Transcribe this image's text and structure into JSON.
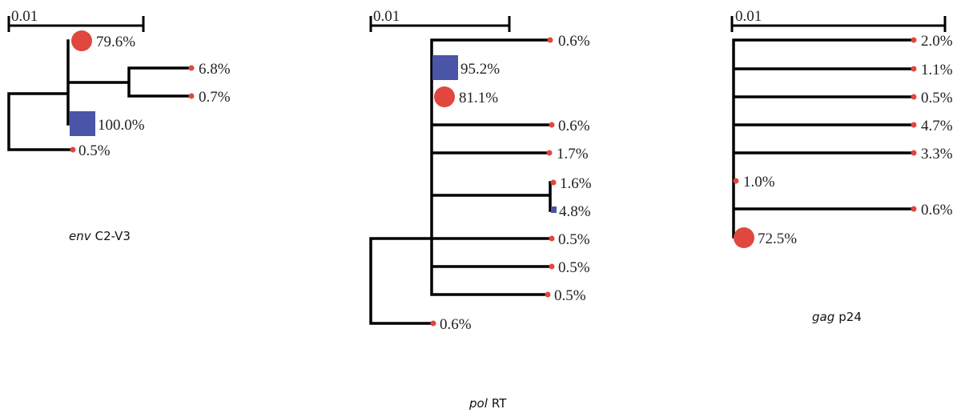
{
  "colors": {
    "red": "#e0473f",
    "blue": "#4a55a8",
    "line": "#000000"
  },
  "trees": [
    {
      "id": "env",
      "scale_label": "0.01",
      "caption": {
        "gene": "env",
        "region": "C2-V3"
      },
      "tips": [
        {
          "label": "79.6%",
          "percent": 79.6,
          "marker": "circle-red"
        },
        {
          "label": "6.8%",
          "percent": 6.8,
          "marker": "dot-red"
        },
        {
          "label": "0.7%",
          "percent": 0.7,
          "marker": "dot-red"
        },
        {
          "label": "100.0%",
          "percent": 100.0,
          "marker": "square-blue"
        },
        {
          "label": "0.5%",
          "percent": 0.5,
          "marker": "dot-red"
        }
      ]
    },
    {
      "id": "pol",
      "scale_label": "0.01",
      "caption": {
        "gene": "pol",
        "region": "RT"
      },
      "tips": [
        {
          "label": "0.6%",
          "percent": 0.6,
          "marker": "dot-red"
        },
        {
          "label": "95.2%",
          "percent": 95.2,
          "marker": "square-blue"
        },
        {
          "label": "81.1%",
          "percent": 81.1,
          "marker": "circle-red"
        },
        {
          "label": "0.6%",
          "percent": 0.6,
          "marker": "dot-red"
        },
        {
          "label": "1.7%",
          "percent": 1.7,
          "marker": "dot-red"
        },
        {
          "label": "1.6%",
          "percent": 1.6,
          "marker": "dot-red"
        },
        {
          "label": "4.8%",
          "percent": 4.8,
          "marker": "square-blue"
        },
        {
          "label": "0.5%",
          "percent": 0.5,
          "marker": "dot-red"
        },
        {
          "label": "0.5%",
          "percent": 0.5,
          "marker": "dot-red"
        },
        {
          "label": "0.5%",
          "percent": 0.5,
          "marker": "dot-red"
        },
        {
          "label": "0.6%",
          "percent": 0.6,
          "marker": "dot-red"
        }
      ]
    },
    {
      "id": "gag",
      "scale_label": "0.01",
      "caption": {
        "gene": "gag",
        "region": "p24"
      },
      "tips": [
        {
          "label": "2.0%",
          "percent": 2.0,
          "marker": "dot-red"
        },
        {
          "label": "1.1%",
          "percent": 1.1,
          "marker": "dot-red"
        },
        {
          "label": "0.5%",
          "percent": 0.5,
          "marker": "dot-red"
        },
        {
          "label": "4.7%",
          "percent": 4.7,
          "marker": "dot-red"
        },
        {
          "label": "3.3%",
          "percent": 3.3,
          "marker": "dot-red"
        },
        {
          "label": "1.0%",
          "percent": 1.0,
          "marker": "dot-red"
        },
        {
          "label": "0.6%",
          "percent": 0.6,
          "marker": "dot-red"
        },
        {
          "label": "72.5%",
          "percent": 72.5,
          "marker": "circle-red"
        }
      ]
    }
  ]
}
